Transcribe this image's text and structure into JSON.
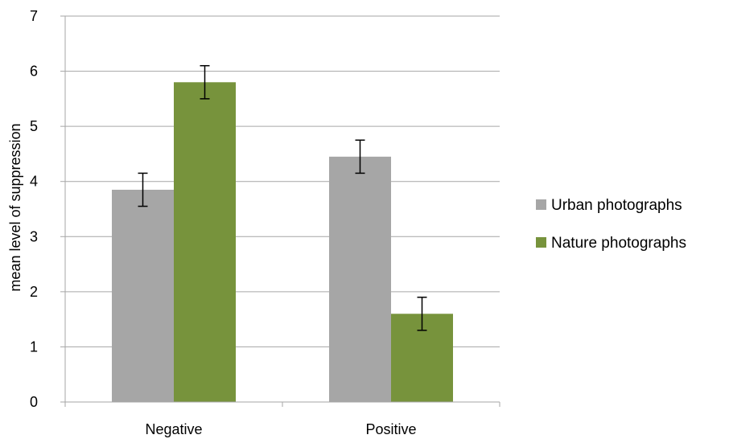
{
  "chart_data": {
    "type": "bar",
    "categories": [
      "Negative",
      "Positive"
    ],
    "series": [
      {
        "name": "Urban photographs",
        "values": [
          3.85,
          4.45
        ],
        "error": [
          0.3,
          0.3
        ],
        "color": "#a6a6a6"
      },
      {
        "name": "Nature photographs",
        "values": [
          5.8,
          1.6
        ],
        "error": [
          0.3,
          0.3
        ],
        "color": "#77933c"
      }
    ],
    "ylabel": "mean level of suppression",
    "ylim": [
      0,
      7
    ],
    "yticks": [
      0,
      1,
      2,
      3,
      4,
      5,
      6,
      7
    ],
    "grid": true,
    "legend": "right",
    "error_bar_color": "#000000",
    "grid_color": "#a6a6a6"
  }
}
